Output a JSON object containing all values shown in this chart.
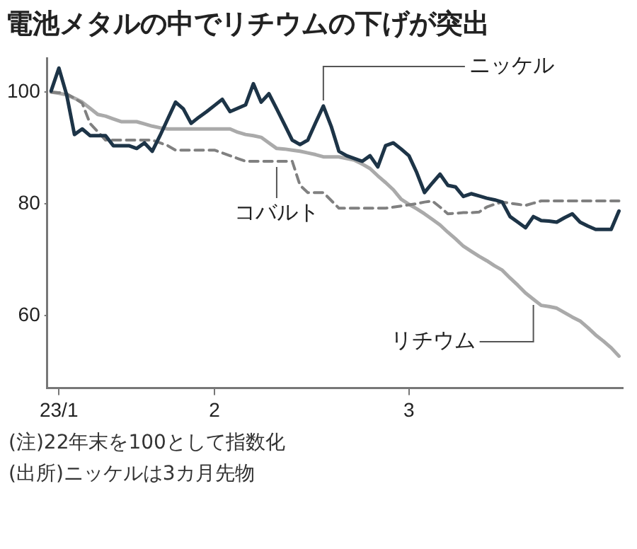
{
  "chart_data": {
    "type": "line",
    "title": "電池メタルの中でリチウムの下げが突出",
    "annotations": [
      "(注)22年末を100として指数化",
      "(出所)ニッケルは3カ月先物"
    ],
    "categories": [
      null,
      "23/1",
      null,
      null,
      null,
      null,
      null,
      null,
      null,
      null,
      null,
      null,
      null,
      null,
      null,
      null,
      null,
      null,
      null,
      null,
      null,
      "2",
      null,
      null,
      null,
      null,
      null,
      null,
      null,
      null,
      null,
      null,
      null,
      null,
      null,
      null,
      null,
      null,
      null,
      null,
      null,
      null,
      null,
      null,
      null,
      null,
      "3",
      null,
      null,
      null,
      null,
      null,
      null,
      null,
      null,
      null,
      null,
      null,
      null,
      null,
      null,
      null,
      null,
      null,
      null,
      null,
      null,
      null,
      null,
      null,
      null,
      null,
      null,
      null
    ],
    "ylim": [
      47,
      106
    ],
    "yticks": [
      60,
      80,
      100
    ],
    "grid": false,
    "legend": false,
    "marker": "none",
    "series": [
      {
        "name": "ニッケル",
        "color": "#1d3447",
        "line_style": "solid",
        "values": [
          100.2,
          104.3,
          99.5,
          92.4,
          93.4,
          92.2,
          92.2,
          92.2,
          90.4,
          90.4,
          90.4,
          89.9,
          90.9,
          89.4,
          92.2,
          95.2,
          98.2,
          97,
          94.4,
          95.5,
          96.5,
          97.6,
          98.7,
          96.5,
          97.1,
          97.7,
          101.5,
          98.2,
          99.7,
          97,
          94.2,
          91.4,
          90.6,
          91.4,
          94.5,
          97.5,
          93.9,
          89.4,
          88.6,
          88.1,
          87.6,
          88.6,
          86.6,
          90.4,
          90.9,
          89.8,
          88.6,
          85.6,
          82,
          83.7,
          85.3,
          83.3,
          83,
          81.3,
          81.8,
          81.4,
          81,
          80.7,
          80.3,
          77.7,
          76.7,
          75.7,
          77.7,
          77,
          76.9,
          76.7,
          77.5,
          78.2,
          76.7,
          76,
          75.4,
          75.4,
          75.4,
          78.7
        ]
      },
      {
        "name": "コバルト",
        "color": "#808080",
        "line_style": "dashed",
        "values": [
          100,
          99.9,
          99.7,
          98.9,
          98,
          94.4,
          92.9,
          91.4,
          91.4,
          91.4,
          91.4,
          91.4,
          91.4,
          91.4,
          90.9,
          90.4,
          89.6,
          89.6,
          89.6,
          89.6,
          89.6,
          89.6,
          89.1,
          88.6,
          88.1,
          87.6,
          87.6,
          87.6,
          87.6,
          87.6,
          87.6,
          87.6,
          83.3,
          82,
          82,
          82,
          80.6,
          79.2,
          79.2,
          79.2,
          79.2,
          79.2,
          79.2,
          79.2,
          79.4,
          79.6,
          79.8,
          80,
          80.3,
          80.5,
          79.4,
          78.2,
          78.3,
          78.4,
          78.4,
          78.5,
          79.4,
          79.9,
          80.3,
          80.1,
          79.9,
          79.7,
          80.1,
          80.5,
          80.5,
          80.5,
          80.5,
          80.5,
          80.5,
          80.5,
          80.5,
          80.5,
          80.5,
          80.5
        ]
      },
      {
        "name": "リチウム",
        "color": "#aaaaaa",
        "line_style": "solid",
        "values": [
          100,
          99.8,
          99.5,
          98.9,
          98.2,
          97.1,
          96,
          95.7,
          95.2,
          94.7,
          94.7,
          94.7,
          94.3,
          93.9,
          93.6,
          93.4,
          93.4,
          93.4,
          93.4,
          93.4,
          93.4,
          93.4,
          93.4,
          93.4,
          92.8,
          92.4,
          92.2,
          91.9,
          90.9,
          89.9,
          89.8,
          89.6,
          89.4,
          89.1,
          88.8,
          88.4,
          88.4,
          88.4,
          88.1,
          87.8,
          87.1,
          86.3,
          85,
          83.8,
          82.5,
          80.8,
          79.9,
          79.1,
          78.2,
          77.2,
          76.2,
          74.9,
          73.7,
          72.4,
          71.5,
          70.6,
          69.8,
          68.9,
          68.1,
          66.7,
          65.4,
          64,
          62.9,
          61.8,
          61.6,
          61.3,
          60.5,
          59.7,
          59,
          57.8,
          56.5,
          55.4,
          54.2,
          52.7
        ]
      }
    ]
  }
}
